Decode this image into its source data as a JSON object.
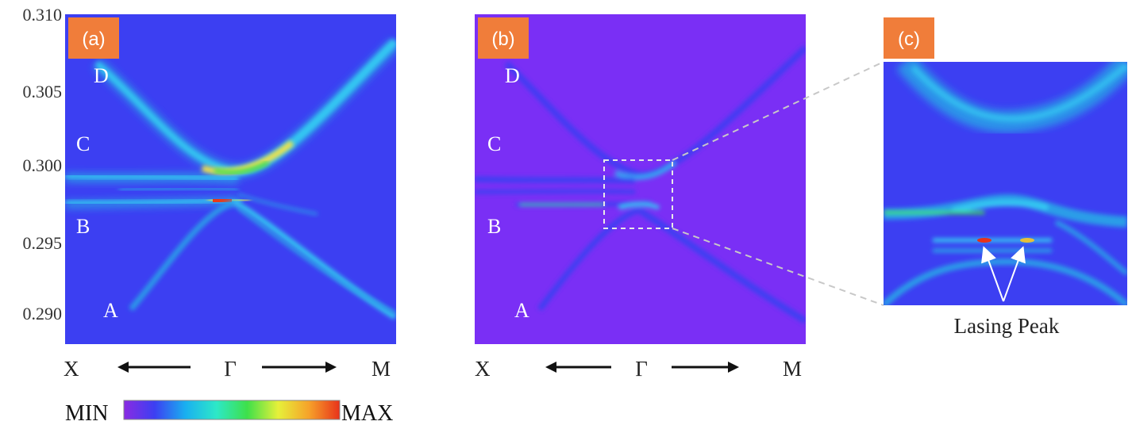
{
  "colors": {
    "panel_a_background": "#3c3ff2",
    "panel_b_background": "#7a2ff5",
    "badge": "#f07d3a",
    "band_glow": "#35c8f2",
    "band_hot": "#f2e24a",
    "band_peak": "#e83a1a"
  },
  "y_axis": {
    "ticks": [
      "0.310",
      "0.305",
      "0.300",
      "0.295",
      "0.290"
    ]
  },
  "panels": [
    {
      "badge": "(a)",
      "x_left": "X",
      "x_center": "Γ",
      "x_right": "M",
      "branches": [
        "D",
        "C",
        "B",
        "A"
      ]
    },
    {
      "badge": "(b)",
      "x_left": "X",
      "x_center": "Γ",
      "x_right": "M",
      "branches": [
        "D",
        "C",
        "B",
        "A"
      ]
    },
    {
      "badge": "(c)",
      "annotation": "Lasing Peak"
    }
  ],
  "colorbar": {
    "min_label": "MIN",
    "max_label": "MAX",
    "stops": [
      "#8a2be2",
      "#3c3ff2",
      "#19b0f0",
      "#2de8c8",
      "#3ee04a",
      "#e6f03a",
      "#f6a22a",
      "#e8321a"
    ]
  },
  "icons": [
    "arrow-left-icon",
    "arrow-right-icon"
  ]
}
